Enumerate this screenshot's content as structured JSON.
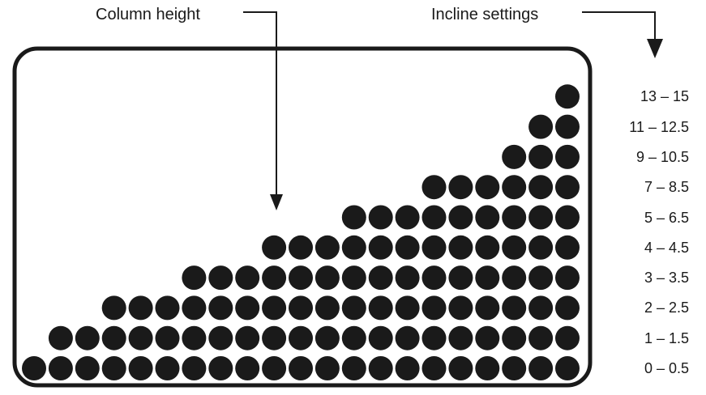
{
  "annotations": {
    "column_height": "Column height",
    "incline_settings": "Incline settings"
  },
  "colors": {
    "dot": "#1a1a1a",
    "frame": "#1a1a1a",
    "text": "#1a1a1a",
    "background": "#ffffff"
  },
  "incline_levels": [
    {
      "label": "0 – 0.5",
      "dots": 21
    },
    {
      "label": "1 – 1.5",
      "dots": 20
    },
    {
      "label": "2 – 2.5",
      "dots": 18
    },
    {
      "label": "3 – 3.5",
      "dots": 15
    },
    {
      "label": "4 – 4.5",
      "dots": 12
    },
    {
      "label": "5 – 6.5",
      "dots": 9
    },
    {
      "label": "7 – 8.5",
      "dots": 6
    },
    {
      "label": "9 – 10.5",
      "dots": 3
    },
    {
      "label": "11 – 12.5",
      "dots": 2
    },
    {
      "label": "13 – 15",
      "dots": 1
    }
  ]
}
